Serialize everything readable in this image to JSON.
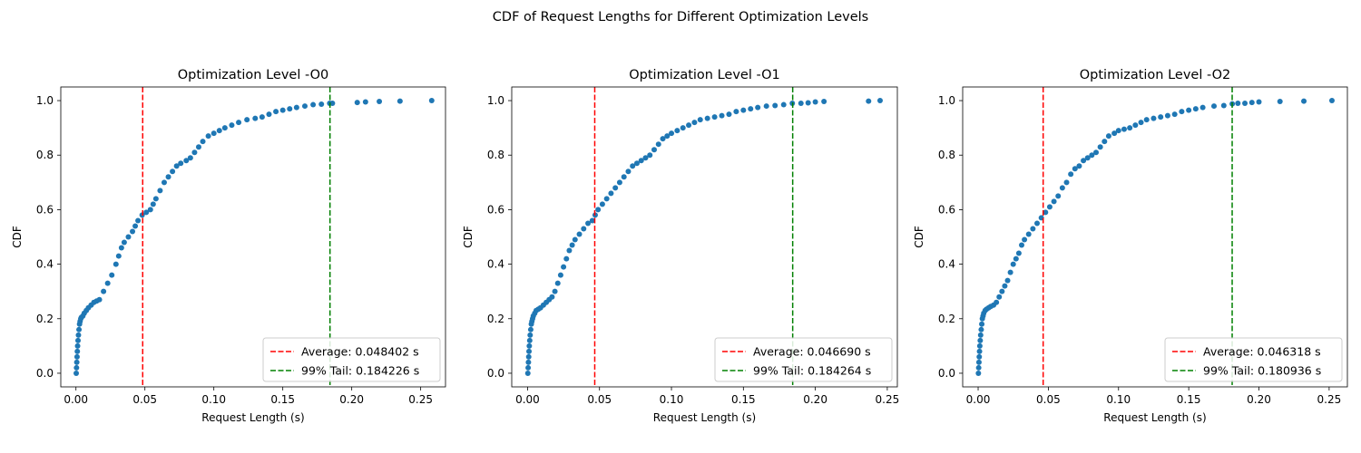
{
  "figure": {
    "title": "CDF of Request Lengths for Different Optimization Levels"
  },
  "chart_data": [
    {
      "type": "scatter",
      "title": "Optimization Level -O0",
      "xlabel": "Request Length (s)",
      "ylabel": "CDF",
      "xlim": [
        -0.011,
        0.268
      ],
      "ylim": [
        -0.05,
        1.05
      ],
      "xticks": [
        "0.00",
        "0.05",
        "0.10",
        "0.15",
        "0.20",
        "0.25"
      ],
      "yticks": [
        "0.0",
        "0.2",
        "0.4",
        "0.6",
        "0.8",
        "1.0"
      ],
      "grid": false,
      "legend_position": "lower-right",
      "marker_color": "#1f77b4",
      "points": [
        [
          0.0002,
          0.0
        ],
        [
          0.0004,
          0.02
        ],
        [
          0.0006,
          0.04
        ],
        [
          0.0008,
          0.06
        ],
        [
          0.001,
          0.08
        ],
        [
          0.0012,
          0.1
        ],
        [
          0.0015,
          0.12
        ],
        [
          0.0018,
          0.14
        ],
        [
          0.0022,
          0.16
        ],
        [
          0.0026,
          0.18
        ],
        [
          0.003,
          0.19
        ],
        [
          0.0035,
          0.2
        ],
        [
          0.004,
          0.205
        ],
        [
          0.005,
          0.21
        ],
        [
          0.006,
          0.22
        ],
        [
          0.0075,
          0.23
        ],
        [
          0.009,
          0.24
        ],
        [
          0.011,
          0.25
        ],
        [
          0.013,
          0.26
        ],
        [
          0.015,
          0.265
        ],
        [
          0.017,
          0.27
        ],
        [
          0.02,
          0.3
        ],
        [
          0.023,
          0.33
        ],
        [
          0.026,
          0.36
        ],
        [
          0.029,
          0.4
        ],
        [
          0.031,
          0.43
        ],
        [
          0.033,
          0.46
        ],
        [
          0.035,
          0.48
        ],
        [
          0.038,
          0.5
        ],
        [
          0.041,
          0.52
        ],
        [
          0.043,
          0.54
        ],
        [
          0.045,
          0.56
        ],
        [
          0.048,
          0.58
        ],
        [
          0.051,
          0.59
        ],
        [
          0.054,
          0.6
        ],
        [
          0.056,
          0.62
        ],
        [
          0.058,
          0.64
        ],
        [
          0.061,
          0.67
        ],
        [
          0.064,
          0.7
        ],
        [
          0.067,
          0.72
        ],
        [
          0.07,
          0.74
        ],
        [
          0.073,
          0.76
        ],
        [
          0.076,
          0.77
        ],
        [
          0.08,
          0.78
        ],
        [
          0.083,
          0.79
        ],
        [
          0.086,
          0.81
        ],
        [
          0.089,
          0.83
        ],
        [
          0.092,
          0.85
        ],
        [
          0.096,
          0.87
        ],
        [
          0.1,
          0.88
        ],
        [
          0.104,
          0.89
        ],
        [
          0.108,
          0.9
        ],
        [
          0.113,
          0.91
        ],
        [
          0.118,
          0.92
        ],
        [
          0.124,
          0.93
        ],
        [
          0.13,
          0.935
        ],
        [
          0.135,
          0.94
        ],
        [
          0.14,
          0.95
        ],
        [
          0.145,
          0.96
        ],
        [
          0.15,
          0.965
        ],
        [
          0.155,
          0.97
        ],
        [
          0.16,
          0.975
        ],
        [
          0.166,
          0.98
        ],
        [
          0.172,
          0.985
        ],
        [
          0.178,
          0.987
        ],
        [
          0.184,
          0.99
        ],
        [
          0.186,
          0.99
        ],
        [
          0.204,
          0.993
        ],
        [
          0.21,
          0.995
        ],
        [
          0.22,
          0.997
        ],
        [
          0.235,
          0.998
        ],
        [
          0.258,
          1.0
        ]
      ],
      "lines": [
        {
          "label": "Average: 0.048402 s",
          "x": 0.048402,
          "color": "#ff0000"
        },
        {
          "label": "99% Tail: 0.184226 s",
          "x": 0.184226,
          "color": "#008000"
        }
      ]
    },
    {
      "type": "scatter",
      "title": "Optimization Level -O1",
      "xlabel": "Request Length (s)",
      "ylabel": "CDF",
      "xlim": [
        -0.011,
        0.257
      ],
      "ylim": [
        -0.05,
        1.05
      ],
      "xticks": [
        "0.00",
        "0.05",
        "0.10",
        "0.15",
        "0.20",
        "0.25"
      ],
      "yticks": [
        "0.0",
        "0.2",
        "0.4",
        "0.6",
        "0.8",
        "1.0"
      ],
      "grid": false,
      "legend_position": "lower-right",
      "marker_color": "#1f77b4",
      "points": [
        [
          0.0002,
          0.0
        ],
        [
          0.0004,
          0.02
        ],
        [
          0.0006,
          0.04
        ],
        [
          0.0008,
          0.06
        ],
        [
          0.001,
          0.08
        ],
        [
          0.0012,
          0.1
        ],
        [
          0.0015,
          0.12
        ],
        [
          0.0018,
          0.14
        ],
        [
          0.0022,
          0.16
        ],
        [
          0.0026,
          0.18
        ],
        [
          0.003,
          0.19
        ],
        [
          0.0035,
          0.2
        ],
        [
          0.004,
          0.21
        ],
        [
          0.005,
          0.22
        ],
        [
          0.006,
          0.23
        ],
        [
          0.0075,
          0.235
        ],
        [
          0.009,
          0.24
        ],
        [
          0.011,
          0.25
        ],
        [
          0.013,
          0.26
        ],
        [
          0.015,
          0.27
        ],
        [
          0.017,
          0.28
        ],
        [
          0.019,
          0.3
        ],
        [
          0.021,
          0.33
        ],
        [
          0.023,
          0.36
        ],
        [
          0.025,
          0.39
        ],
        [
          0.027,
          0.42
        ],
        [
          0.029,
          0.45
        ],
        [
          0.031,
          0.47
        ],
        [
          0.033,
          0.49
        ],
        [
          0.036,
          0.51
        ],
        [
          0.039,
          0.53
        ],
        [
          0.042,
          0.55
        ],
        [
          0.045,
          0.56
        ],
        [
          0.047,
          0.58
        ],
        [
          0.049,
          0.6
        ],
        [
          0.052,
          0.62
        ],
        [
          0.055,
          0.64
        ],
        [
          0.058,
          0.66
        ],
        [
          0.061,
          0.68
        ],
        [
          0.064,
          0.7
        ],
        [
          0.067,
          0.72
        ],
        [
          0.07,
          0.74
        ],
        [
          0.073,
          0.76
        ],
        [
          0.076,
          0.77
        ],
        [
          0.079,
          0.78
        ],
        [
          0.082,
          0.79
        ],
        [
          0.085,
          0.8
        ],
        [
          0.088,
          0.82
        ],
        [
          0.091,
          0.84
        ],
        [
          0.094,
          0.86
        ],
        [
          0.097,
          0.87
        ],
        [
          0.1,
          0.88
        ],
        [
          0.104,
          0.89
        ],
        [
          0.108,
          0.9
        ],
        [
          0.112,
          0.91
        ],
        [
          0.116,
          0.92
        ],
        [
          0.12,
          0.93
        ],
        [
          0.125,
          0.935
        ],
        [
          0.13,
          0.94
        ],
        [
          0.135,
          0.945
        ],
        [
          0.14,
          0.95
        ],
        [
          0.145,
          0.96
        ],
        [
          0.15,
          0.965
        ],
        [
          0.155,
          0.97
        ],
        [
          0.16,
          0.975
        ],
        [
          0.166,
          0.98
        ],
        [
          0.172,
          0.982
        ],
        [
          0.178,
          0.985
        ],
        [
          0.184,
          0.99
        ],
        [
          0.19,
          0.99
        ],
        [
          0.195,
          0.992
        ],
        [
          0.2,
          0.995
        ],
        [
          0.206,
          0.997
        ],
        [
          0.237,
          0.998
        ],
        [
          0.245,
          1.0
        ]
      ],
      "lines": [
        {
          "label": "Average: 0.046690 s",
          "x": 0.04669,
          "color": "#ff0000"
        },
        {
          "label": "99% Tail: 0.184264 s",
          "x": 0.184264,
          "color": "#008000"
        }
      ]
    },
    {
      "type": "scatter",
      "title": "Optimization Level -O2",
      "xlabel": "Request Length (s)",
      "ylabel": "CDF",
      "xlim": [
        -0.011,
        0.263
      ],
      "ylim": [
        -0.05,
        1.05
      ],
      "xticks": [
        "0.00",
        "0.05",
        "0.10",
        "0.15",
        "0.20",
        "0.25"
      ],
      "yticks": [
        "0.0",
        "0.2",
        "0.4",
        "0.6",
        "0.8",
        "1.0"
      ],
      "grid": false,
      "legend_position": "lower-right",
      "marker_color": "#1f77b4",
      "points": [
        [
          0.0002,
          0.0
        ],
        [
          0.0004,
          0.02
        ],
        [
          0.0006,
          0.04
        ],
        [
          0.0008,
          0.06
        ],
        [
          0.001,
          0.08
        ],
        [
          0.0012,
          0.1
        ],
        [
          0.0015,
          0.12
        ],
        [
          0.0018,
          0.14
        ],
        [
          0.0022,
          0.16
        ],
        [
          0.0026,
          0.18
        ],
        [
          0.003,
          0.2
        ],
        [
          0.0035,
          0.21
        ],
        [
          0.004,
          0.22
        ],
        [
          0.005,
          0.23
        ],
        [
          0.006,
          0.235
        ],
        [
          0.0075,
          0.24
        ],
        [
          0.009,
          0.245
        ],
        [
          0.011,
          0.25
        ],
        [
          0.013,
          0.26
        ],
        [
          0.015,
          0.28
        ],
        [
          0.017,
          0.3
        ],
        [
          0.019,
          0.32
        ],
        [
          0.021,
          0.34
        ],
        [
          0.023,
          0.37
        ],
        [
          0.025,
          0.4
        ],
        [
          0.027,
          0.42
        ],
        [
          0.029,
          0.44
        ],
        [
          0.031,
          0.47
        ],
        [
          0.033,
          0.49
        ],
        [
          0.036,
          0.51
        ],
        [
          0.039,
          0.53
        ],
        [
          0.042,
          0.55
        ],
        [
          0.045,
          0.57
        ],
        [
          0.048,
          0.59
        ],
        [
          0.051,
          0.61
        ],
        [
          0.054,
          0.63
        ],
        [
          0.057,
          0.65
        ],
        [
          0.06,
          0.68
        ],
        [
          0.063,
          0.7
        ],
        [
          0.066,
          0.73
        ],
        [
          0.069,
          0.75
        ],
        [
          0.072,
          0.76
        ],
        [
          0.075,
          0.78
        ],
        [
          0.078,
          0.79
        ],
        [
          0.081,
          0.8
        ],
        [
          0.084,
          0.81
        ],
        [
          0.087,
          0.83
        ],
        [
          0.09,
          0.85
        ],
        [
          0.093,
          0.87
        ],
        [
          0.097,
          0.88
        ],
        [
          0.1,
          0.89
        ],
        [
          0.104,
          0.895
        ],
        [
          0.108,
          0.9
        ],
        [
          0.112,
          0.91
        ],
        [
          0.116,
          0.92
        ],
        [
          0.12,
          0.93
        ],
        [
          0.125,
          0.935
        ],
        [
          0.13,
          0.94
        ],
        [
          0.135,
          0.945
        ],
        [
          0.14,
          0.95
        ],
        [
          0.145,
          0.96
        ],
        [
          0.15,
          0.965
        ],
        [
          0.155,
          0.97
        ],
        [
          0.16,
          0.975
        ],
        [
          0.168,
          0.98
        ],
        [
          0.175,
          0.982
        ],
        [
          0.181,
          0.988
        ],
        [
          0.185,
          0.99
        ],
        [
          0.19,
          0.99
        ],
        [
          0.195,
          0.993
        ],
        [
          0.2,
          0.995
        ],
        [
          0.215,
          0.997
        ],
        [
          0.232,
          0.998
        ],
        [
          0.252,
          1.0
        ]
      ],
      "lines": [
        {
          "label": "Average: 0.046318 s",
          "x": 0.046318,
          "color": "#ff0000"
        },
        {
          "label": "99% Tail: 0.180936 s",
          "x": 0.180936,
          "color": "#008000"
        }
      ]
    }
  ]
}
